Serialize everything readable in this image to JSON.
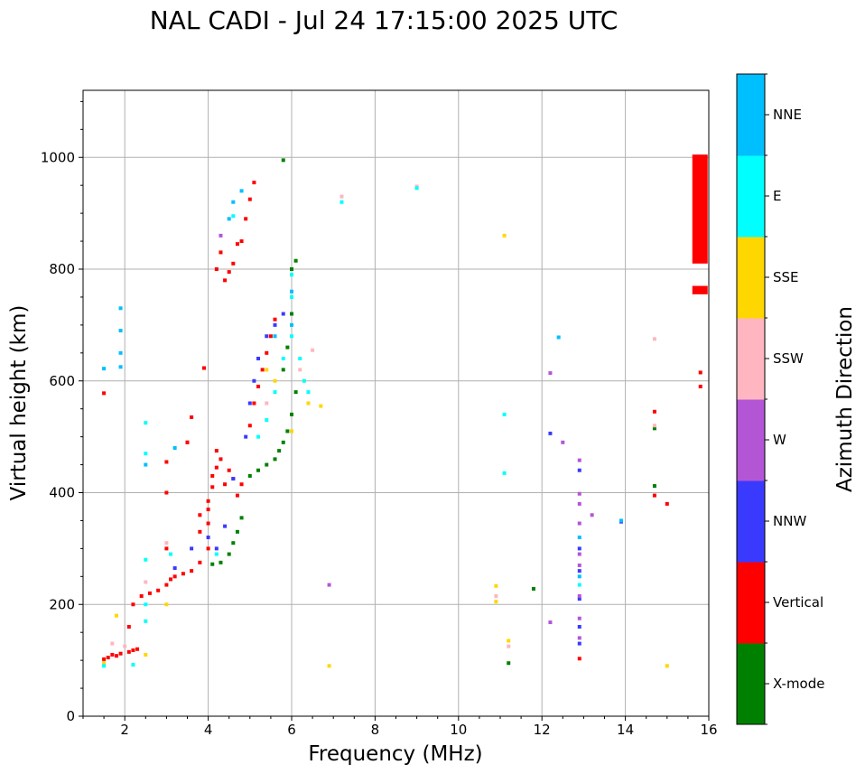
{
  "chart_data": {
    "type": "scatter",
    "title": "NAL CADI - Jul 24 17:15:00 2025 UTC",
    "xlabel": "Frequency (MHz)",
    "ylabel": "Virtual height (km)",
    "xlim": [
      1,
      16
    ],
    "ylim": [
      0,
      1120
    ],
    "xticks": [
      2,
      4,
      6,
      8,
      10,
      12,
      14,
      16
    ],
    "yticks": [
      0,
      200,
      400,
      600,
      800,
      1000
    ],
    "grid": true,
    "colorbar": {
      "label": "Azimuth Direction",
      "categories": [
        {
          "name": "X-mode",
          "color": "#008000"
        },
        {
          "name": "Vertical",
          "color": "#ff0000"
        },
        {
          "name": "NNW",
          "color": "#3a3aff"
        },
        {
          "name": "W",
          "color": "#b356d6"
        },
        {
          "name": "SSW",
          "color": "#ffb6c1"
        },
        {
          "name": "SSE",
          "color": "#ffd700"
        },
        {
          "name": "E",
          "color": "#00ffff"
        },
        {
          "name": "NNE",
          "color": "#00bfff"
        }
      ]
    },
    "series": [
      {
        "name": "Vertical",
        "points": [
          [
            1.5,
            102
          ],
          [
            1.6,
            105
          ],
          [
            1.7,
            110
          ],
          [
            1.8,
            108
          ],
          [
            1.9,
            112
          ],
          [
            2.1,
            115
          ],
          [
            2.2,
            118
          ],
          [
            2.3,
            120
          ],
          [
            2.1,
            160
          ],
          [
            2.2,
            200
          ],
          [
            2.4,
            215
          ],
          [
            2.6,
            220
          ],
          [
            2.8,
            225
          ],
          [
            3.0,
            235
          ],
          [
            3.1,
            245
          ],
          [
            3.2,
            250
          ],
          [
            3.4,
            255
          ],
          [
            3.6,
            260
          ],
          [
            3.8,
            275
          ],
          [
            3.0,
            300
          ],
          [
            3.0,
            400
          ],
          [
            3.0,
            455
          ],
          [
            3.5,
            490
          ],
          [
            3.5,
            490
          ],
          [
            3.6,
            535
          ],
          [
            3.8,
            330
          ],
          [
            3.8,
            360
          ],
          [
            4.0,
            300
          ],
          [
            4.0,
            345
          ],
          [
            4.0,
            370
          ],
          [
            4.0,
            385
          ],
          [
            4.1,
            410
          ],
          [
            4.1,
            430
          ],
          [
            4.2,
            445
          ],
          [
            4.3,
            460
          ],
          [
            4.2,
            475
          ],
          [
            4.4,
            415
          ],
          [
            4.5,
            440
          ],
          [
            4.6,
            425
          ],
          [
            4.7,
            395
          ],
          [
            4.8,
            415
          ],
          [
            4.2,
            800
          ],
          [
            4.3,
            830
          ],
          [
            4.4,
            780
          ],
          [
            4.5,
            795
          ],
          [
            4.6,
            810
          ],
          [
            4.7,
            845
          ],
          [
            4.8,
            850
          ],
          [
            4.9,
            890
          ],
          [
            5.0,
            925
          ],
          [
            5.1,
            955
          ],
          [
            5.0,
            520
          ],
          [
            5.1,
            560
          ],
          [
            5.2,
            590
          ],
          [
            5.3,
            620
          ],
          [
            5.4,
            650
          ],
          [
            5.5,
            680
          ],
          [
            5.6,
            710
          ],
          [
            1.5,
            578
          ],
          [
            3.9,
            623
          ],
          [
            12.9,
            103
          ],
          [
            14.7,
            395
          ],
          [
            14.7,
            545
          ],
          [
            15.0,
            380
          ],
          [
            15.8,
            590
          ],
          [
            15.8,
            615
          ],
          [
            15.8,
            765
          ]
        ]
      },
      {
        "name": "X-mode",
        "points": [
          [
            4.1,
            272
          ],
          [
            4.3,
            275
          ],
          [
            4.5,
            290
          ],
          [
            4.6,
            310
          ],
          [
            4.7,
            330
          ],
          [
            4.8,
            355
          ],
          [
            5.0,
            430
          ],
          [
            5.2,
            440
          ],
          [
            5.4,
            450
          ],
          [
            5.6,
            460
          ],
          [
            5.7,
            475
          ],
          [
            5.8,
            490
          ],
          [
            5.9,
            510
          ],
          [
            6.0,
            540
          ],
          [
            6.1,
            580
          ],
          [
            5.8,
            620
          ],
          [
            5.9,
            660
          ],
          [
            6.0,
            720
          ],
          [
            6.0,
            800
          ],
          [
            6.1,
            815
          ],
          [
            5.8,
            995
          ],
          [
            11.2,
            95
          ],
          [
            11.8,
            228
          ],
          [
            14.7,
            412
          ],
          [
            14.7,
            515
          ]
        ]
      },
      {
        "name": "NNW",
        "points": [
          [
            3.2,
            265
          ],
          [
            3.6,
            300
          ],
          [
            4.0,
            320
          ],
          [
            4.2,
            300
          ],
          [
            4.4,
            340
          ],
          [
            4.6,
            425
          ],
          [
            4.9,
            500
          ],
          [
            5.0,
            560
          ],
          [
            5.1,
            600
          ],
          [
            5.2,
            640
          ],
          [
            5.4,
            680
          ],
          [
            5.6,
            700
          ],
          [
            5.8,
            720
          ],
          [
            12.2,
            506
          ],
          [
            12.9,
            440
          ],
          [
            12.9,
            300
          ],
          [
            12.9,
            260
          ],
          [
            12.9,
            210
          ],
          [
            12.9,
            160
          ],
          [
            12.9,
            130
          ],
          [
            13.9,
            348
          ]
        ]
      },
      {
        "name": "W",
        "points": [
          [
            12.2,
            168
          ],
          [
            12.2,
            614
          ],
          [
            12.5,
            490
          ],
          [
            12.9,
            458
          ],
          [
            12.9,
            398
          ],
          [
            12.9,
            380
          ],
          [
            12.9,
            345
          ],
          [
            12.9,
            290
          ],
          [
            12.9,
            270
          ],
          [
            12.9,
            215
          ],
          [
            12.9,
            175
          ],
          [
            12.9,
            140
          ],
          [
            13.2,
            360
          ],
          [
            6.9,
            235
          ],
          [
            4.3,
            860
          ]
        ]
      },
      {
        "name": "SSW",
        "points": [
          [
            1.7,
            130
          ],
          [
            2.0,
            125
          ],
          [
            2.5,
            240
          ],
          [
            3.0,
            310
          ],
          [
            5.4,
            560
          ],
          [
            6.2,
            620
          ],
          [
            6.5,
            655
          ],
          [
            7.2,
            930
          ],
          [
            9.0,
            948
          ],
          [
            10.9,
            215
          ],
          [
            11.2,
            125
          ],
          [
            14.7,
            520
          ],
          [
            14.7,
            675
          ]
        ]
      },
      {
        "name": "SSE",
        "points": [
          [
            1.5,
            95
          ],
          [
            1.8,
            180
          ],
          [
            2.5,
            110
          ],
          [
            3.0,
            200
          ],
          [
            5.4,
            620
          ],
          [
            5.6,
            600
          ],
          [
            6.0,
            510
          ],
          [
            6.4,
            560
          ],
          [
            6.7,
            555
          ],
          [
            6.9,
            90
          ],
          [
            10.9,
            233
          ],
          [
            10.9,
            205
          ],
          [
            11.1,
            860
          ],
          [
            11.2,
            135
          ],
          [
            15.0,
            90
          ]
        ]
      },
      {
        "name": "E",
        "points": [
          [
            1.5,
            90
          ],
          [
            2.2,
            92
          ],
          [
            2.5,
            170
          ],
          [
            2.5,
            200
          ],
          [
            2.5,
            280
          ],
          [
            2.5,
            470
          ],
          [
            2.5,
            525
          ],
          [
            3.1,
            290
          ],
          [
            4.2,
            290
          ],
          [
            4.6,
            895
          ],
          [
            5.2,
            500
          ],
          [
            5.4,
            530
          ],
          [
            5.6,
            580
          ],
          [
            5.8,
            640
          ],
          [
            6.0,
            680
          ],
          [
            6.2,
            640
          ],
          [
            6.3,
            600
          ],
          [
            6.4,
            580
          ],
          [
            6.0,
            750
          ],
          [
            6.0,
            790
          ],
          [
            7.2,
            920
          ],
          [
            9.0,
            945
          ],
          [
            11.1,
            435
          ],
          [
            11.1,
            540
          ],
          [
            12.9,
            235
          ]
        ]
      },
      {
        "name": "NNE",
        "points": [
          [
            1.5,
            622
          ],
          [
            1.9,
            625
          ],
          [
            1.9,
            650
          ],
          [
            1.9,
            690
          ],
          [
            1.9,
            730
          ],
          [
            2.5,
            450
          ],
          [
            3.2,
            480
          ],
          [
            4.6,
            920
          ],
          [
            4.5,
            890
          ],
          [
            4.8,
            940
          ],
          [
            5.6,
            680
          ],
          [
            6.0,
            760
          ],
          [
            6.0,
            700
          ],
          [
            12.4,
            678
          ],
          [
            12.9,
            250
          ],
          [
            12.9,
            320
          ],
          [
            13.9,
            350
          ]
        ]
      }
    ],
    "tall_bars": [
      {
        "name": "Vertical",
        "x": 15.8,
        "y0": 810,
        "y1": 1005
      },
      {
        "name": "Vertical",
        "x": 15.8,
        "y0": 755,
        "y1": 770
      }
    ]
  }
}
